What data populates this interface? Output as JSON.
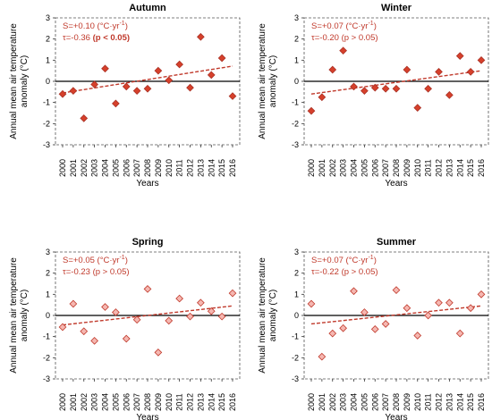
{
  "chart_data": [
    {
      "type": "scatter",
      "title": "Autumn",
      "xlabel": "Years",
      "ylabel": "Annual mean air temperature anomaly (°C)",
      "ylim": [
        -3,
        3
      ],
      "xcategories": [
        "2000",
        "2001",
        "2002",
        "2003",
        "2004",
        "2005",
        "2006",
        "2007",
        "2008",
        "2009",
        "2010",
        "2011",
        "2012",
        "2013",
        "2014",
        "2015",
        "2016"
      ],
      "yticks": [
        "-3",
        "-2",
        "-1",
        "0",
        "1",
        "2",
        "3"
      ],
      "values": [
        -0.6,
        -0.45,
        -1.75,
        -0.15,
        0.6,
        -1.05,
        -0.25,
        -0.45,
        -0.35,
        0.5,
        0.05,
        0.8,
        -0.3,
        2.1,
        0.3,
        1.1,
        -0.7
      ],
      "trend": [
        -0.55,
        0.72
      ],
      "annotation_1": "S=+0.10 (°C·yr",
      "annotation_1_sup": "-1",
      "annotation_1_end": ")",
      "annotation_2": "τ=-0.36 ",
      "annotation_2_bold": "(p < 0.05)",
      "marker": "filled",
      "color": "#c0392b"
    },
    {
      "type": "scatter",
      "title": "Winter",
      "xlabel": "Years",
      "ylabel": "Annual mean air temperature anomaly (°C)",
      "ylim": [
        -3,
        3
      ],
      "xcategories": [
        "2000",
        "2001",
        "2002",
        "2003",
        "2004",
        "2005",
        "2006",
        "2007",
        "2008",
        "2009",
        "2010",
        "2011",
        "2012",
        "2013",
        "2014",
        "2015",
        "2016"
      ],
      "yticks": [
        "-3",
        "-2",
        "-1",
        "0",
        "1",
        "2",
        "3"
      ],
      "values": [
        -1.4,
        -0.75,
        0.55,
        1.45,
        -0.25,
        -0.45,
        -0.3,
        -0.35,
        -0.35,
        0.55,
        -1.25,
        -0.35,
        0.45,
        -0.65,
        1.2,
        0.45,
        1.0
      ],
      "trend": [
        -0.6,
        0.5
      ],
      "annotation_1": "S=+0.07 (°C·yr",
      "annotation_1_sup": "-1",
      "annotation_1_end": ")",
      "annotation_2": "τ=-0.20 (p > 0.05)",
      "annotation_2_bold": "",
      "marker": "filled",
      "color": "#c0392b"
    },
    {
      "type": "scatter",
      "title": "Spring",
      "xlabel": "Years",
      "ylabel": "Annual mean air temperature anomaly (°C)",
      "ylim": [
        -3,
        3
      ],
      "xcategories": [
        "2000",
        "2001",
        "2002",
        "2003",
        "2004",
        "2005",
        "2006",
        "2007",
        "2008",
        "2009",
        "2010",
        "2011",
        "2012",
        "2013",
        "2014",
        "2015",
        "2016"
      ],
      "yticks": [
        "-3",
        "-2",
        "-1",
        "0",
        "1",
        "2",
        "3"
      ],
      "values": [
        -0.55,
        0.55,
        -0.75,
        -1.2,
        0.4,
        0.15,
        -1.1,
        -0.2,
        1.25,
        -1.75,
        -0.25,
        0.8,
        -0.05,
        0.6,
        0.2,
        -0.05,
        1.05
      ],
      "trend": [
        -0.45,
        0.45
      ],
      "annotation_1": "S=+0.05 (°C·yr",
      "annotation_1_sup": "-1",
      "annotation_1_end": ")",
      "annotation_2": "τ=-0.23 (p > 0.05)",
      "annotation_2_bold": "",
      "marker": "open",
      "color": "#c0392b"
    },
    {
      "type": "scatter",
      "title": "Summer",
      "xlabel": "Years",
      "ylabel": "Annual mean air temperature anomaly (°C)",
      "ylim": [
        -3,
        3
      ],
      "xcategories": [
        "2000",
        "2001",
        "2002",
        "2003",
        "2004",
        "2005",
        "2006",
        "2007",
        "2008",
        "2009",
        "2010",
        "2011",
        "2012",
        "2013",
        "2014",
        "2015",
        "2016"
      ],
      "yticks": [
        "-3",
        "-2",
        "-1",
        "0",
        "1",
        "2",
        "3"
      ],
      "values": [
        0.55,
        -1.95,
        -0.85,
        -0.6,
        1.15,
        0.15,
        -0.65,
        -0.4,
        1.2,
        0.35,
        -0.95,
        0.0,
        0.6,
        0.6,
        -0.85,
        0.35,
        1.0
      ],
      "trend": [
        -0.4,
        0.45
      ],
      "annotation_1": "S=+0.07 (°C·yr",
      "annotation_1_sup": "-1",
      "annotation_1_end": ")",
      "annotation_2": "τ=-0.22 (p > 0.05)",
      "annotation_2_bold": "",
      "marker": "open",
      "color": "#c0392b"
    }
  ]
}
